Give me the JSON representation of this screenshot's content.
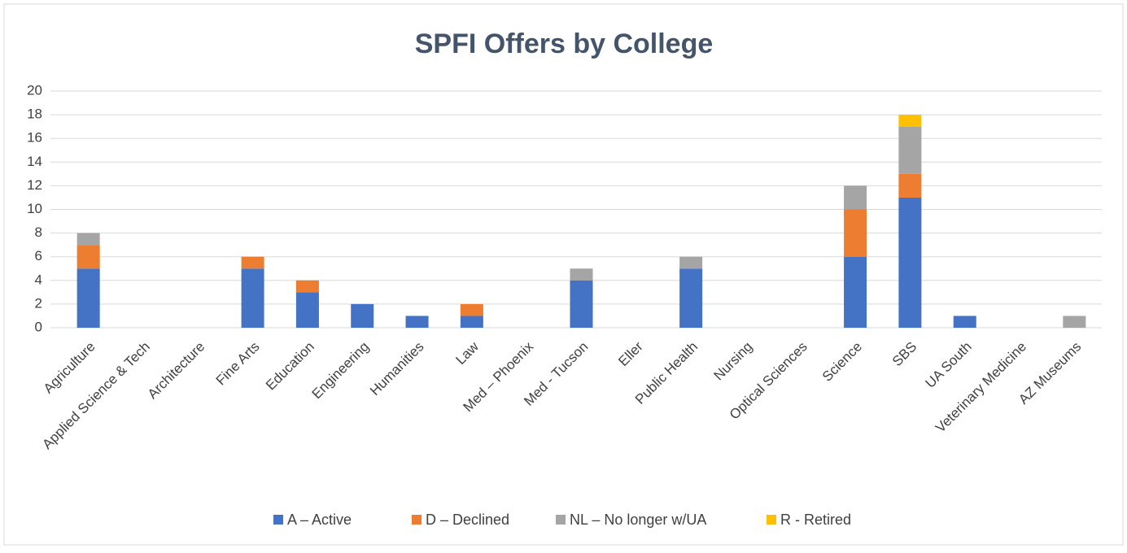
{
  "chart_data": {
    "type": "stacked_bar",
    "title": "SPFI Offers by College",
    "categories": [
      "Agriculture",
      "Applied Science & Tech",
      "Architecture",
      "Fine Arts",
      "Education",
      "Engineering",
      "Humanities",
      "Law",
      "Med – Phoenix",
      "Med - Tucson",
      "Eller",
      "Public Health",
      "Nursing",
      "Optical Sciences",
      "Science",
      "SBS",
      "UA South",
      "Veterinary Medicine",
      "AZ Museums"
    ],
    "series": [
      {
        "name": "A – Active",
        "color": "#4472c4",
        "values": [
          5,
          0,
          0,
          5,
          3,
          2,
          1,
          1,
          0,
          4,
          0,
          5,
          0,
          0,
          6,
          11,
          1,
          0,
          0
        ]
      },
      {
        "name": "D – Declined",
        "color": "#ed7d31",
        "values": [
          2,
          0,
          0,
          1,
          1,
          0,
          0,
          1,
          0,
          0,
          0,
          0,
          0,
          0,
          4,
          2,
          0,
          0,
          0
        ]
      },
      {
        "name": "NL – No longer w/UA",
        "color": "#a5a5a5",
        "values": [
          1,
          0,
          0,
          0,
          0,
          0,
          0,
          0,
          0,
          1,
          0,
          1,
          0,
          0,
          2,
          4,
          0,
          0,
          1
        ]
      },
      {
        "name": "R - Retired",
        "color": "#ffc000",
        "values": [
          0,
          0,
          0,
          0,
          0,
          0,
          0,
          0,
          0,
          0,
          0,
          0,
          0,
          0,
          0,
          1,
          0,
          0,
          0
        ]
      }
    ],
    "ylim": [
      0,
      20
    ],
    "yticks": [
      0,
      2,
      4,
      6,
      8,
      10,
      12,
      14,
      16,
      18,
      20
    ],
    "grid": true,
    "legend": "bottom"
  }
}
